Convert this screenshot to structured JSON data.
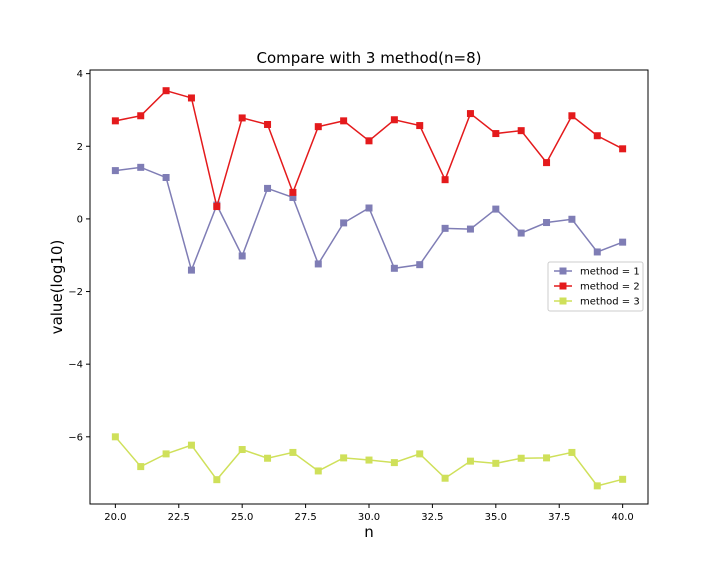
{
  "chart_data": {
    "type": "line",
    "title": "Compare with 3 method(n=8)",
    "xlabel": "n",
    "ylabel": "value(log10)",
    "xlim": [
      19.0,
      41.0
    ],
    "ylim": [
      -7.85,
      4.1
    ],
    "xticks": [
      "20.0",
      "22.5",
      "25.0",
      "27.5",
      "30.0",
      "32.5",
      "35.0",
      "37.5",
      "40.0"
    ],
    "yticks": [
      "−6",
      "−4",
      "−2",
      "0",
      "2",
      "4"
    ],
    "xtick_values": [
      20.0,
      22.5,
      25.0,
      27.5,
      30.0,
      32.5,
      35.0,
      37.5,
      40.0
    ],
    "ytick_values": [
      -6,
      -4,
      -2,
      0,
      2,
      4
    ],
    "grid": false,
    "legend_position": "center-right",
    "x": [
      20,
      21,
      22,
      23,
      24,
      25,
      26,
      27,
      28,
      29,
      30,
      31,
      32,
      33,
      34,
      35,
      36,
      37,
      38,
      39,
      40
    ],
    "series": [
      {
        "name": "method = 1",
        "color": "#7f7db5",
        "marker": "square",
        "values": [
          1.33,
          1.42,
          1.14,
          -1.41,
          0.38,
          -1.02,
          0.84,
          0.59,
          -1.24,
          -0.11,
          0.3,
          -1.36,
          -1.26,
          -0.26,
          -0.28,
          0.27,
          -0.39,
          -0.1,
          -0.01,
          -0.91,
          -0.64
        ]
      },
      {
        "name": "method = 2",
        "color": "#e41a1c",
        "marker": "square",
        "values": [
          2.7,
          2.84,
          3.53,
          3.33,
          0.34,
          2.78,
          2.6,
          0.73,
          2.54,
          2.7,
          2.15,
          2.73,
          2.57,
          1.08,
          2.9,
          2.35,
          2.43,
          1.55,
          2.84,
          2.29,
          1.93
        ]
      },
      {
        "name": "method = 3",
        "color": "#cfe05a",
        "marker": "square",
        "values": [
          -6.0,
          -6.82,
          -6.47,
          -6.23,
          -7.18,
          -6.35,
          -6.59,
          -6.43,
          -6.94,
          -6.58,
          -6.64,
          -6.71,
          -6.47,
          -7.14,
          -6.67,
          -6.73,
          -6.59,
          -6.58,
          -6.43,
          -7.35,
          -7.17
        ]
      }
    ]
  }
}
